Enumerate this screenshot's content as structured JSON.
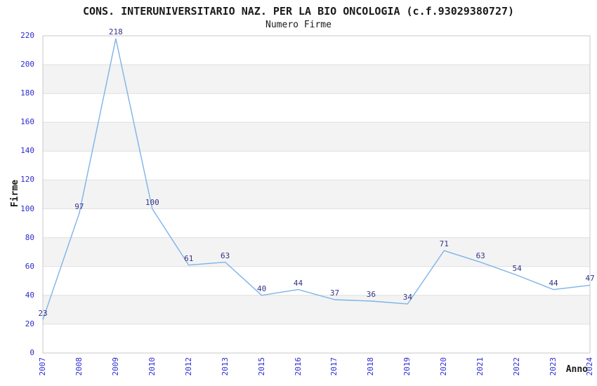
{
  "page": {
    "title": "CONS. INTERUNIVERSITARIO NAZ. PER LA BIO ONCOLOGIA (c.f.93029380727)",
    "subtitle": "Numero Firme"
  },
  "chart_data": {
    "type": "line",
    "title": "CONS. INTERUNIVERSITARIO NAZ. PER LA BIO ONCOLOGIA (c.f.93029380727)",
    "subtitle": "Numero Firme",
    "xlabel": "Anno",
    "ylabel": "Firme",
    "categories": [
      "2007",
      "2008",
      "2009",
      "2010",
      "2012",
      "2013",
      "2015",
      "2016",
      "2017",
      "2018",
      "2019",
      "2020",
      "2021",
      "2022",
      "2023",
      "2024"
    ],
    "values": [
      23,
      97,
      218,
      100,
      61,
      63,
      40,
      44,
      37,
      36,
      34,
      71,
      63,
      54,
      44,
      47
    ],
    "ylim": [
      0,
      220
    ],
    "ytick_step": 20,
    "grid": true,
    "alternating_bands": true,
    "legend": "none",
    "point_labels_visible": true,
    "colors": {
      "line": "#7db3e8",
      "tick_label": "#2b2bd0",
      "point_label": "#333388",
      "band": "#f3f3f3",
      "gridline": "#e0e0e0",
      "plot_border": "#c9c9c9",
      "text": "#1a1a1a"
    }
  }
}
